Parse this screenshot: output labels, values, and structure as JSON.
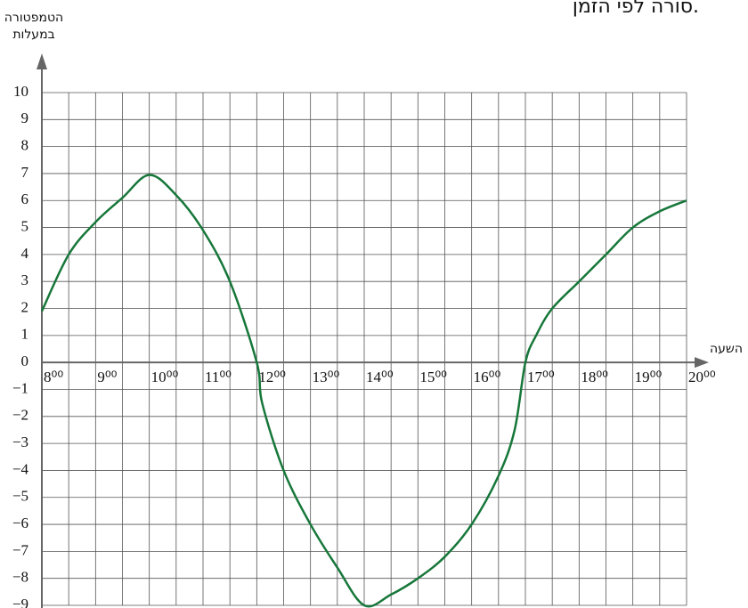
{
  "chart_data": {
    "type": "line",
    "title": "סורה לפי הזמן.",
    "y_label": [
      "הטמפטורה",
      "במעלות"
    ],
    "x_label": "השעה",
    "x": [
      8,
      8.5,
      9,
      9.5,
      10,
      10.5,
      11,
      11.5,
      12,
      12.1,
      12.5,
      13,
      13.5,
      14,
      14.5,
      15,
      15.5,
      16,
      16.5,
      16.8,
      17,
      17.2,
      17.5,
      18,
      18.5,
      19,
      19.5,
      20
    ],
    "series": [
      {
        "color": "#17773a",
        "values": [
          1.9,
          4,
          5.2,
          6.1,
          6.95,
          6.2,
          4.9,
          3,
          0,
          -1.5,
          -4,
          -6,
          -7.6,
          -9,
          -8.6,
          -8,
          -7.2,
          -6,
          -4.2,
          -2.5,
          0,
          1,
          2,
          3,
          4,
          5,
          5.6,
          6
        ]
      }
    ],
    "xlim": [
      8,
      20
    ],
    "xticks": [
      {
        "value": 8,
        "label": "8⁰⁰"
      },
      {
        "value": 9,
        "label": "9⁰⁰"
      },
      {
        "value": 10,
        "label": "10⁰⁰"
      },
      {
        "value": 11,
        "label": "11⁰⁰"
      },
      {
        "value": 12,
        "label": "12⁰⁰"
      },
      {
        "value": 13,
        "label": "13⁰⁰"
      },
      {
        "value": 14,
        "label": "14⁰⁰"
      },
      {
        "value": 15,
        "label": "15⁰⁰"
      },
      {
        "value": 16,
        "label": "16⁰⁰"
      },
      {
        "value": 17,
        "label": "17⁰⁰"
      },
      {
        "value": 18,
        "label": "18⁰⁰"
      },
      {
        "value": 19,
        "label": "19⁰⁰"
      },
      {
        "value": 20,
        "label": "20⁰⁰"
      }
    ],
    "ylim": [
      -9,
      10
    ],
    "yticks": [
      10,
      9,
      8,
      7,
      6,
      5,
      4,
      3,
      2,
      1,
      0,
      {
        "value": -1,
        "label": "−1"
      },
      {
        "value": -2,
        "label": "−2"
      },
      {
        "value": -3,
        "label": "−3"
      },
      {
        "value": -4,
        "label": "−4"
      },
      {
        "value": -5,
        "label": "−5"
      },
      {
        "value": -6,
        "label": "−6"
      },
      {
        "value": -7,
        "label": "−7"
      },
      {
        "value": -8,
        "label": "−8"
      },
      {
        "value": -9,
        "label": "−9"
      }
    ],
    "grid": true
  }
}
